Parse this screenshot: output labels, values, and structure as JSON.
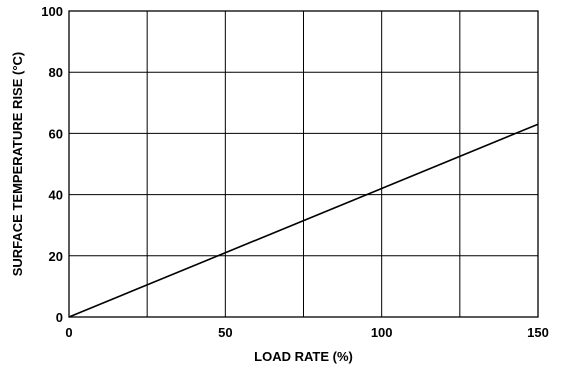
{
  "chart_data": {
    "type": "line",
    "title": "",
    "xlabel": "LOAD RATE (%)",
    "ylabel": "SURFACE TEMPERATURE RISE (°C)",
    "xlim": [
      0,
      150
    ],
    "ylim": [
      0,
      100
    ],
    "x_ticks": [
      "0",
      "50",
      "100",
      "150"
    ],
    "y_ticks": [
      "0",
      "20",
      "40",
      "60",
      "80",
      "100"
    ],
    "x_grid_values": [
      0,
      25,
      50,
      75,
      100,
      125,
      150
    ],
    "y_grid_values": [
      0,
      20,
      40,
      60,
      80,
      100
    ],
    "grid": true,
    "series": [
      {
        "x": [
          0,
          150
        ],
        "y": [
          0,
          63
        ]
      }
    ]
  }
}
